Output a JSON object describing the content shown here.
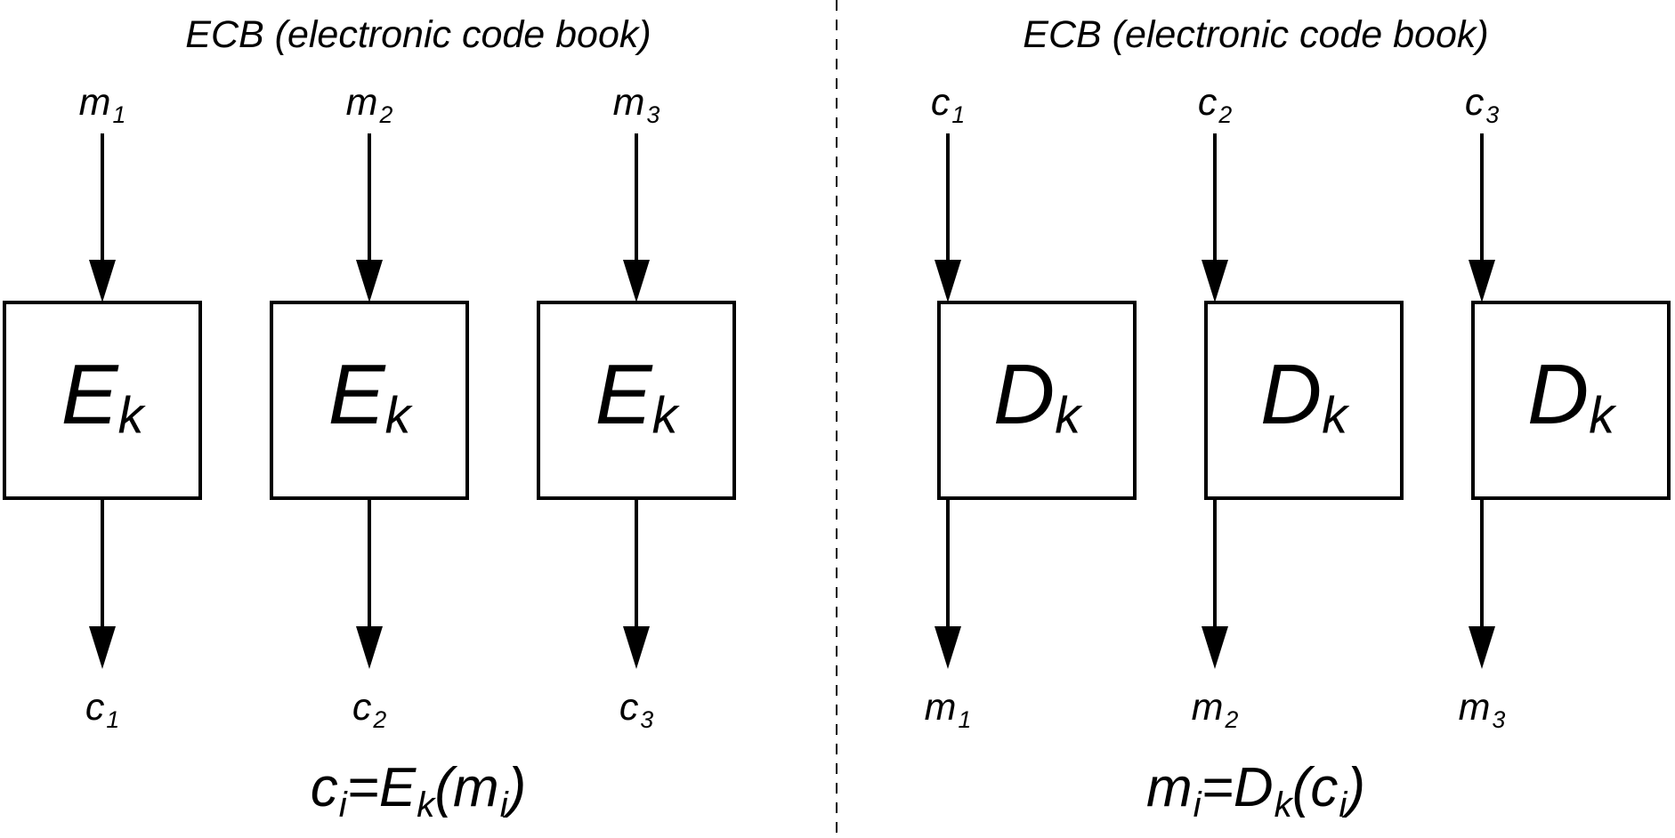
{
  "encryption": {
    "title": "ECB (electronic code book)",
    "inputs": [
      {
        "base": "m",
        "sub": "1"
      },
      {
        "base": "m",
        "sub": "2"
      },
      {
        "base": "m",
        "sub": "3"
      }
    ],
    "blocks": [
      {
        "base": "E",
        "sub": "k"
      },
      {
        "base": "E",
        "sub": "k"
      },
      {
        "base": "E",
        "sub": "k"
      }
    ],
    "outputs": [
      {
        "base": "c",
        "sub": "1"
      },
      {
        "base": "c",
        "sub": "2"
      },
      {
        "base": "c",
        "sub": "3"
      }
    ],
    "formula": {
      "lhs_base": "c",
      "lhs_sub": "i",
      "eq": "=",
      "fn_base": "E",
      "fn_sub": "k",
      "open": "(",
      "arg_base": "m",
      "arg_sub": "i",
      "close": ")"
    }
  },
  "decryption": {
    "title": "ECB (electronic code book)",
    "inputs": [
      {
        "base": "c",
        "sub": "1"
      },
      {
        "base": "c",
        "sub": "2"
      },
      {
        "base": "c",
        "sub": "3"
      }
    ],
    "blocks": [
      {
        "base": "D",
        "sub": "k"
      },
      {
        "base": "D",
        "sub": "k"
      },
      {
        "base": "D",
        "sub": "k"
      }
    ],
    "outputs": [
      {
        "base": "m",
        "sub": "1"
      },
      {
        "base": "m",
        "sub": "2"
      },
      {
        "base": "m",
        "sub": "3"
      }
    ],
    "formula": {
      "lhs_base": "m",
      "lhs_sub": "i",
      "eq": "=",
      "fn_base": "D",
      "fn_sub": "k",
      "open": "(",
      "arg_base": "c",
      "arg_sub": "i",
      "close": ")"
    }
  }
}
